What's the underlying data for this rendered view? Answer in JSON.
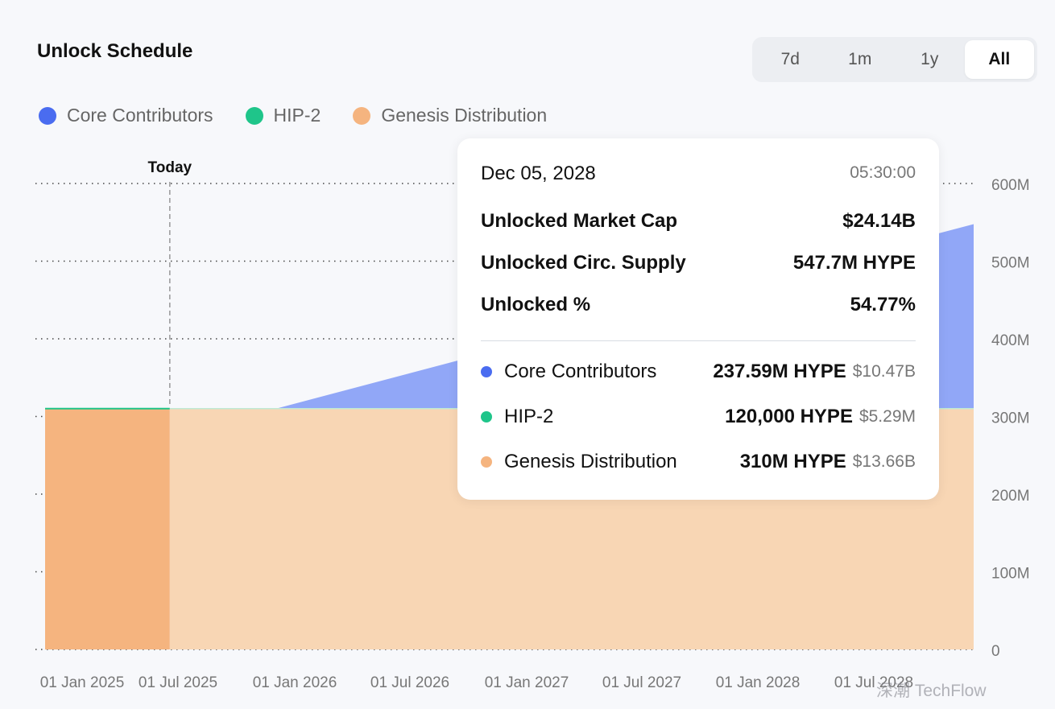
{
  "header": {
    "title": "Unlock Schedule"
  },
  "range_selector": {
    "options": [
      "7d",
      "1m",
      "1y",
      "All"
    ],
    "selected": "All"
  },
  "legend": [
    {
      "label": "Core Contributors",
      "color": "#4a6cf0"
    },
    {
      "label": "HIP-2",
      "color": "#1fc58a"
    },
    {
      "label": "Genesis Distribution",
      "color": "#f5b47f"
    }
  ],
  "tooltip": {
    "date": "Dec 05, 2028",
    "time": "05:30:00",
    "rows": [
      {
        "label": "Unlocked Market Cap",
        "value": "$24.14B"
      },
      {
        "label": "Unlocked Circ. Supply",
        "value": "547.7M HYPE"
      },
      {
        "label": "Unlocked %",
        "value": "54.77%"
      }
    ],
    "series": [
      {
        "name": "Core Contributors",
        "amount": "237.59M HYPE",
        "value": "$10.47B",
        "color": "#4a6cf0"
      },
      {
        "name": "HIP-2",
        "amount": "120,000 HYPE",
        "value": "$5.29M",
        "color": "#1fc58a"
      },
      {
        "name": "Genesis Distribution",
        "amount": "310M HYPE",
        "value": "$13.66B",
        "color": "#f5b47f"
      }
    ]
  },
  "watermark": "深潮 TechFlow",
  "chart_data": {
    "type": "area",
    "stacked": true,
    "x_tick_labels": [
      "01 Jan 2025",
      "01 Jul 2025",
      "01 Jan 2026",
      "01 Jul 2026",
      "01 Jan 2027",
      "01 Jul 2027",
      "01 Jan 2028",
      "01 Jul 2028"
    ],
    "y_tick_labels": [
      "0",
      "100M",
      "200M",
      "300M",
      "400M",
      "500M",
      "600M"
    ],
    "ylim": [
      0,
      600
    ],
    "y_unit": "M",
    "x_range": [
      "2024-11-29",
      "2028-12-05"
    ],
    "today_marker": {
      "label": "Today",
      "date": "2025-06-14"
    },
    "series": [
      {
        "name": "Genesis Distribution",
        "color": "#f5b47f",
        "points": [
          [
            "2024-11-29",
            310
          ],
          [
            "2028-12-05",
            310
          ]
        ]
      },
      {
        "name": "HIP-2",
        "color": "#1fc58a",
        "points": [
          [
            "2024-11-29",
            0.12
          ],
          [
            "2028-12-05",
            0.12
          ]
        ]
      },
      {
        "name": "Core Contributors",
        "color": "#91a7f7",
        "points": [
          [
            "2024-11-29",
            0
          ],
          [
            "2025-11-29",
            0
          ],
          [
            "2028-12-05",
            237.59
          ]
        ]
      }
    ],
    "grid": "horizontal-dotted",
    "y_axis_position": "right"
  }
}
